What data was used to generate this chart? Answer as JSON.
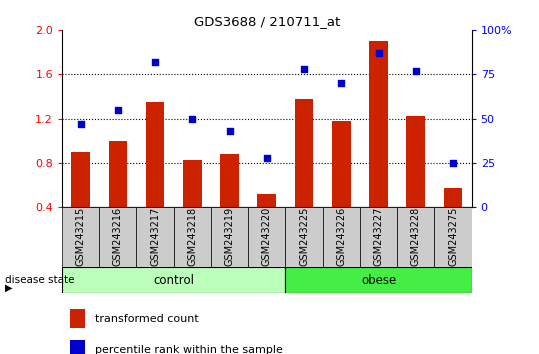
{
  "title": "GDS3688 / 210711_at",
  "categories": [
    "GSM243215",
    "GSM243216",
    "GSM243217",
    "GSM243218",
    "GSM243219",
    "GSM243220",
    "GSM243225",
    "GSM243226",
    "GSM243227",
    "GSM243228",
    "GSM243275"
  ],
  "bar_values": [
    0.9,
    1.0,
    1.35,
    0.83,
    0.88,
    0.52,
    1.38,
    1.18,
    1.9,
    1.22,
    0.57
  ],
  "scatter_values": [
    47,
    55,
    82,
    50,
    43,
    28,
    78,
    70,
    87,
    77,
    25
  ],
  "bar_color": "#cc2200",
  "scatter_color": "#0000cc",
  "ylim_left": [
    0.4,
    2.0
  ],
  "ylim_right": [
    0,
    100
  ],
  "yticks_left": [
    0.4,
    0.8,
    1.2,
    1.6,
    2.0
  ],
  "yticks_right": [
    0,
    25,
    50,
    75,
    100
  ],
  "ytick_right_labels": [
    "0",
    "25",
    "50",
    "75",
    "100%"
  ],
  "n_control": 6,
  "n_obese": 5,
  "control_label": "control",
  "obese_label": "obese",
  "disease_state_label": "disease state",
  "legend_bar_label": "transformed count",
  "legend_scatter_label": "percentile rank within the sample",
  "control_color": "#bbffbb",
  "obese_color": "#44ee44",
  "xtick_bg_color": "#cccccc",
  "bar_width": 0.5,
  "hline_y": [
    0.8,
    1.2,
    1.6
  ]
}
